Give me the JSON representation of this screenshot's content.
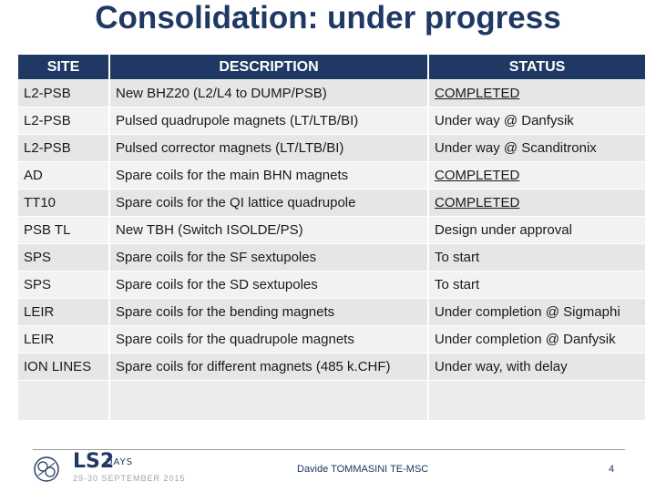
{
  "title": "Consolidation: under progress",
  "table": {
    "headers": [
      "SITE",
      "DESCRIPTION",
      "STATUS"
    ],
    "rows": [
      {
        "site": "L2-PSB",
        "description": "New BHZ20 (L2/L4 to DUMP/PSB)",
        "status": "COMPLETED"
      },
      {
        "site": "L2-PSB",
        "description": "Pulsed quadrupole magnets (LT/LTB/BI)",
        "status": "Under way @ Danfysik"
      },
      {
        "site": "L2-PSB",
        "description": "Pulsed corrector magnets (LT/LTB/BI)",
        "status": "Under way @ Scanditronix"
      },
      {
        "site": "AD",
        "description": "Spare coils for the main BHN magnets",
        "status": "COMPLETED"
      },
      {
        "site": "TT10",
        "description": "Spare coils for the QI lattice quadrupole",
        "status": "COMPLETED"
      },
      {
        "site": "PSB TL",
        "description": "New TBH (Switch ISOLDE/PS)",
        "status": "Design under approval"
      },
      {
        "site": "SPS",
        "description": "Spare coils for the SF sextupoles",
        "status": "To start"
      },
      {
        "site": "SPS",
        "description": "Spare coils for the SD sextupoles",
        "status": "To start"
      },
      {
        "site": "LEIR",
        "description": "Spare coils for the bending magnets",
        "status": "Under completion @ Sigmaphi"
      },
      {
        "site": "LEIR",
        "description": "Spare coils for the quadrupole magnets",
        "status": "Under completion @ Danfysik"
      },
      {
        "site": "ION LINES",
        "description": "Spare coils for different magnets (485 k.CHF)",
        "status": "Under way, with delay"
      }
    ]
  },
  "footer": {
    "logo_text": "LS2",
    "logo_days": "DAYS",
    "logo_date": "29-30 SEPTEMBER 2015",
    "author": "Davide TOMMASINI TE-MSC",
    "page_number": "4"
  },
  "colors": {
    "header_bg": "#1f3864",
    "title": "#1f3864",
    "row_odd": "#e6e6e6",
    "row_even": "#f2f2f2"
  }
}
